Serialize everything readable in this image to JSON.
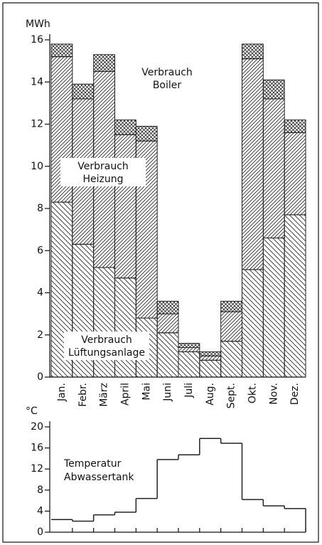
{
  "chart_data": [
    {
      "type": "stacked_bar",
      "y_label": "MWh",
      "categories": [
        "Jan.",
        "Febr.",
        "März",
        "April",
        "Mai",
        "Juni",
        "Juli",
        "Aug.",
        "Sept.",
        "Okt.",
        "Nov.",
        "Dez."
      ],
      "series": [
        {
          "name": "Verbrauch Lüftungsanlage",
          "color": "#222222",
          "hatch": "backslash",
          "values": [
            8.3,
            6.3,
            5.2,
            4.7,
            2.8,
            2.1,
            1.2,
            0.8,
            1.7,
            5.1,
            6.6,
            7.7
          ]
        },
        {
          "name": "Verbrauch Heizung",
          "color": "#222222",
          "hatch": "slash",
          "values": [
            6.9,
            6.9,
            9.3,
            6.8,
            8.4,
            0.9,
            0.2,
            0.2,
            1.4,
            10.0,
            6.6,
            3.9
          ]
        },
        {
          "name": "Verbrauch Boiler",
          "color": "#222222",
          "hatch": "cross",
          "values": [
            0.6,
            0.7,
            0.8,
            0.7,
            0.7,
            0.6,
            0.2,
            0.2,
            0.5,
            0.7,
            0.9,
            0.6
          ]
        }
      ],
      "ylim": [
        0,
        16
      ],
      "yticks": [
        0,
        2,
        4,
        6,
        8,
        10,
        12,
        14,
        16
      ]
    },
    {
      "type": "step",
      "y_label": "°C",
      "series": [
        {
          "name": "Temperatur Abwassertank",
          "color": "#222222",
          "values": [
            2.4,
            2.1,
            3.3,
            3.8,
            6.4,
            13.8,
            14.7,
            17.8,
            16.9,
            6.2,
            5.0,
            4.5
          ]
        }
      ],
      "ylim": [
        0,
        20
      ],
      "yticks": [
        0,
        4,
        8,
        12,
        16,
        20
      ]
    }
  ]
}
